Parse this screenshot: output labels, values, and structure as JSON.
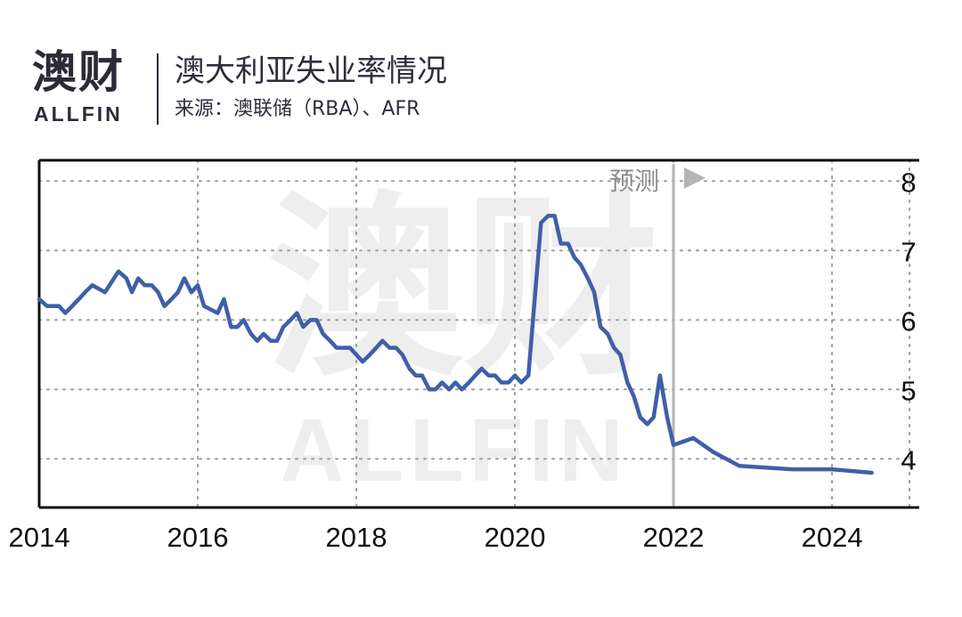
{
  "header": {
    "logo_cn": "澳财",
    "logo_en": "ALLFIN",
    "title": "澳大利亚失业率情况",
    "subtitle": "来源：澳联储（RBA）、AFR"
  },
  "watermark": {
    "cn": "澳财",
    "en": "ALLFIN"
  },
  "colors": {
    "line": "#3f5fa8",
    "axis": "#111111",
    "grid": "#9a9a9a",
    "forecast_line": "#b5b5b5",
    "forecast_text": "#8c8c8c",
    "watermark": "#eeeeee"
  },
  "chart_data": {
    "type": "line",
    "title": "澳大利亚失业率情况",
    "xlabel": "",
    "ylabel": "",
    "xlim": [
      2014,
      2025.1
    ],
    "ylim": [
      3.3,
      8.3
    ],
    "x_ticks": [
      "2014",
      "2016",
      "2018",
      "2020",
      "2022",
      "2024"
    ],
    "y_ticks": [
      "4",
      "5",
      "6",
      "7",
      "8"
    ],
    "grid": true,
    "forecast": {
      "label": "预测",
      "start": 2022.0
    },
    "series": [
      {
        "points": [
          [
            2014.0,
            6.3
          ],
          [
            2014.1,
            6.2
          ],
          [
            2014.25,
            6.2
          ],
          [
            2014.33,
            6.1
          ],
          [
            2014.5,
            6.3
          ],
          [
            2014.58,
            6.4
          ],
          [
            2014.67,
            6.5
          ],
          [
            2014.83,
            6.4
          ],
          [
            2015.0,
            6.7
          ],
          [
            2015.1,
            6.6
          ],
          [
            2015.17,
            6.4
          ],
          [
            2015.25,
            6.6
          ],
          [
            2015.33,
            6.5
          ],
          [
            2015.42,
            6.5
          ],
          [
            2015.5,
            6.4
          ],
          [
            2015.58,
            6.2
          ],
          [
            2015.67,
            6.3
          ],
          [
            2015.75,
            6.4
          ],
          [
            2015.83,
            6.6
          ],
          [
            2015.92,
            6.4
          ],
          [
            2016.0,
            6.5
          ],
          [
            2016.08,
            6.2
          ],
          [
            2016.25,
            6.1
          ],
          [
            2016.33,
            6.3
          ],
          [
            2016.42,
            5.9
          ],
          [
            2016.5,
            5.9
          ],
          [
            2016.58,
            6.0
          ],
          [
            2016.67,
            5.8
          ],
          [
            2016.75,
            5.7
          ],
          [
            2016.83,
            5.8
          ],
          [
            2016.92,
            5.7
          ],
          [
            2017.0,
            5.7
          ],
          [
            2017.08,
            5.9
          ],
          [
            2017.17,
            6.0
          ],
          [
            2017.25,
            6.1
          ],
          [
            2017.33,
            5.9
          ],
          [
            2017.42,
            6.0
          ],
          [
            2017.5,
            6.0
          ],
          [
            2017.58,
            5.8
          ],
          [
            2017.67,
            5.7
          ],
          [
            2017.75,
            5.6
          ],
          [
            2017.83,
            5.6
          ],
          [
            2017.92,
            5.6
          ],
          [
            2018.0,
            5.5
          ],
          [
            2018.08,
            5.4
          ],
          [
            2018.17,
            5.5
          ],
          [
            2018.25,
            5.6
          ],
          [
            2018.33,
            5.7
          ],
          [
            2018.42,
            5.6
          ],
          [
            2018.5,
            5.6
          ],
          [
            2018.58,
            5.5
          ],
          [
            2018.67,
            5.3
          ],
          [
            2018.75,
            5.2
          ],
          [
            2018.83,
            5.2
          ],
          [
            2018.92,
            5.0
          ],
          [
            2019.0,
            5.0
          ],
          [
            2019.08,
            5.1
          ],
          [
            2019.17,
            5.0
          ],
          [
            2019.25,
            5.1
          ],
          [
            2019.33,
            5.0
          ],
          [
            2019.42,
            5.1
          ],
          [
            2019.5,
            5.2
          ],
          [
            2019.58,
            5.3
          ],
          [
            2019.67,
            5.2
          ],
          [
            2019.75,
            5.2
          ],
          [
            2019.83,
            5.1
          ],
          [
            2019.92,
            5.1
          ],
          [
            2020.0,
            5.2
          ],
          [
            2020.08,
            5.1
          ],
          [
            2020.17,
            5.2
          ],
          [
            2020.25,
            6.3
          ],
          [
            2020.33,
            7.4
          ],
          [
            2020.42,
            7.5
          ],
          [
            2020.5,
            7.5
          ],
          [
            2020.58,
            7.1
          ],
          [
            2020.67,
            7.1
          ],
          [
            2020.75,
            6.9
          ],
          [
            2020.83,
            6.8
          ],
          [
            2020.92,
            6.6
          ],
          [
            2021.0,
            6.4
          ],
          [
            2021.08,
            5.9
          ],
          [
            2021.17,
            5.8
          ],
          [
            2021.25,
            5.6
          ],
          [
            2021.33,
            5.5
          ],
          [
            2021.42,
            5.1
          ],
          [
            2021.5,
            4.9
          ],
          [
            2021.58,
            4.6
          ],
          [
            2021.67,
            4.5
          ],
          [
            2021.75,
            4.6
          ],
          [
            2021.83,
            5.2
          ],
          [
            2021.92,
            4.6
          ],
          [
            2022.0,
            4.2
          ],
          [
            2022.25,
            4.3
          ],
          [
            2022.5,
            4.1
          ],
          [
            2022.83,
            3.9
          ],
          [
            2023.5,
            3.85
          ],
          [
            2024.0,
            3.85
          ],
          [
            2024.5,
            3.8
          ]
        ]
      }
    ]
  }
}
